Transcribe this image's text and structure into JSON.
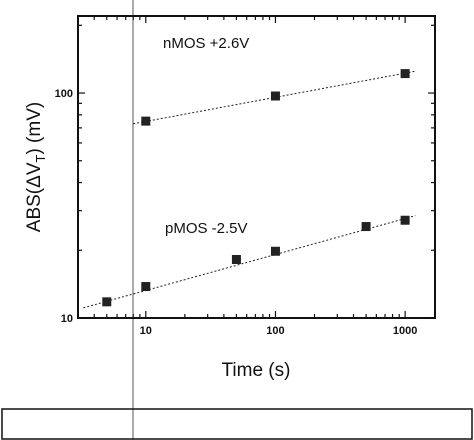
{
  "chart_data": {
    "type": "scatter",
    "xlabel": "Time (s)",
    "ylabel_parts": [
      "ABS(ΔV",
      "T",
      ") (mV)"
    ],
    "xscale": "log",
    "yscale": "log",
    "xlim": [
      3,
      1700
    ],
    "ylim": [
      10,
      220
    ],
    "x_tick_labels": [
      {
        "value": 10,
        "label": "10"
      },
      {
        "value": 100,
        "label": "100"
      },
      {
        "value": 1000,
        "label": "1000"
      }
    ],
    "y_tick_labels": [
      {
        "value": 10,
        "label": "10"
      },
      {
        "value": 100,
        "label": "100"
      }
    ],
    "series": [
      {
        "annotation": "nMOS +2.6V",
        "x": [
          10,
          100,
          1000
        ],
        "y": [
          75,
          97,
          122
        ],
        "fit": {
          "x": [
            8,
            1200
          ],
          "y": [
            73,
            125
          ]
        }
      },
      {
        "annotation": "pMOS -2.5V",
        "x": [
          5,
          10,
          50,
          100,
          500,
          1000
        ],
        "y": [
          11.8,
          13.8,
          18.2,
          19.8,
          25.5,
          27.2
        ],
        "fit": {
          "x": [
            3.3,
            1200
          ],
          "y": [
            11.1,
            28.5
          ]
        }
      }
    ],
    "marker": "square",
    "grid": false,
    "legend": "none",
    "colors": {
      "marks": "#222222",
      "axis": "#111111",
      "cursor_line": "#555555"
    }
  }
}
